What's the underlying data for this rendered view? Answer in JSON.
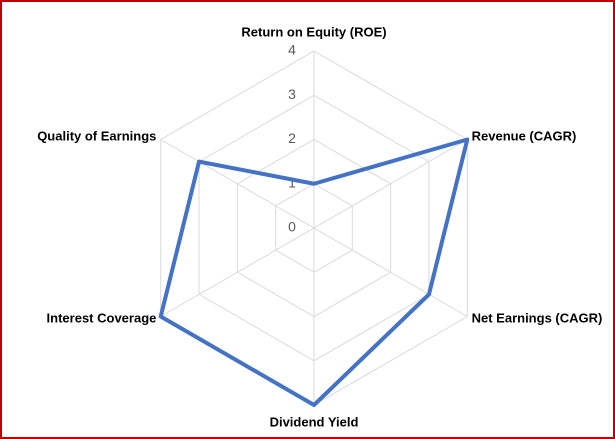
{
  "chart_data": {
    "type": "radar",
    "categories": [
      "Return on Equity (ROE)",
      "Revenue (CAGR)",
      "Net Earnings (CAGR)",
      "Dividend Yield",
      "Interest Coverage",
      "Quality of Earnings"
    ],
    "series": [
      {
        "name": null,
        "color": "#4472c4",
        "values": [
          1,
          4,
          3,
          4,
          4,
          3
        ]
      }
    ],
    "ylim": [
      0,
      4
    ],
    "yticks": [
      0,
      1,
      2,
      3,
      4
    ],
    "grid": true
  }
}
